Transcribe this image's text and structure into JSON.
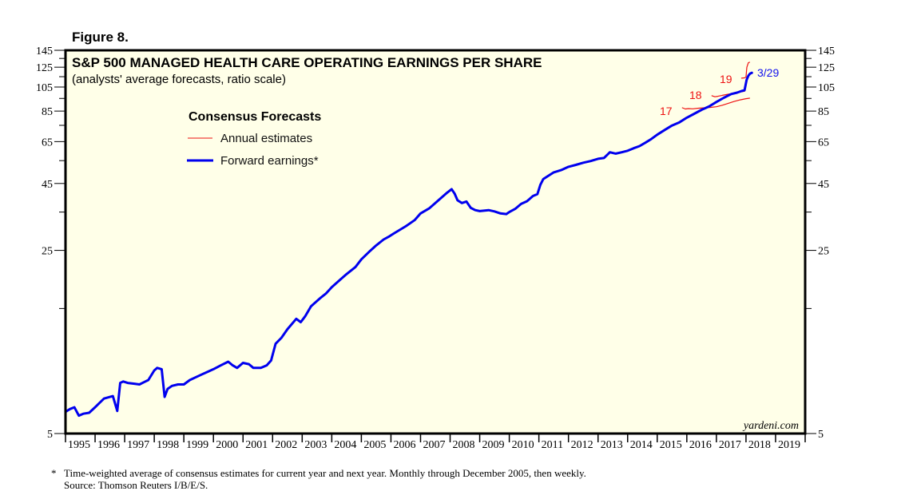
{
  "figure_label": "Figure 8.",
  "footnote": {
    "marker": "*",
    "line1": "Time-weighted average of consensus estimates for current year and next year. Monthly through December 2005, then weekly.",
    "line2": "Source: Thomson Reuters I/B/E/S."
  },
  "colors": {
    "plot_background": "#ffffe8",
    "forward_earnings": "#0000ee",
    "annual_estimates": "#ee1111",
    "axis": "#000000"
  },
  "chart_data": {
    "type": "line",
    "title": "S&P 500 MANAGED HEALTH CARE OPERATING EARNINGS PER SHARE",
    "subtitle": "(analysts' average forecasts, ratio scale)",
    "xlabel": "",
    "ylabel": "",
    "y_scale": "log",
    "ylim": [
      5,
      145
    ],
    "xlim": [
      1995,
      2020
    ],
    "grid": false,
    "y_ticks": [
      5,
      25,
      45,
      65,
      85,
      105,
      125,
      145
    ],
    "y_minor_ticks": [
      15,
      35,
      55,
      75,
      95,
      115,
      135
    ],
    "x_tick_labels": [
      "1995",
      "1996",
      "1997",
      "1998",
      "1999",
      "2000",
      "2001",
      "2002",
      "2003",
      "2004",
      "2005",
      "2006",
      "2007",
      "2008",
      "2009",
      "2010",
      "2011",
      "2012",
      "2013",
      "2014",
      "2015",
      "2016",
      "2017",
      "2018",
      "2019"
    ],
    "legend": {
      "title": "Consensus Forecasts",
      "placement": "top-left",
      "entries": [
        {
          "label": "Annual estimates",
          "series": "annual"
        },
        {
          "label": "Forward earnings*",
          "series": "forward"
        }
      ]
    },
    "watermark": "yardeni.com",
    "series": [
      {
        "name": "Forward earnings",
        "color": "#0000ee",
        "x": [
          1995.0,
          1995.15,
          1995.3,
          1995.45,
          1995.6,
          1995.8,
          1996.0,
          1996.3,
          1996.6,
          1996.75,
          1996.85,
          1996.95,
          1997.1,
          1997.3,
          1997.5,
          1997.65,
          1997.8,
          1998.0,
          1998.1,
          1998.25,
          1998.35,
          1998.45,
          1998.6,
          1998.8,
          1999.0,
          1999.2,
          1999.5,
          1999.8,
          2000.0,
          2000.25,
          2000.5,
          2000.65,
          2000.8,
          2001.0,
          2001.2,
          2001.35,
          2001.6,
          2001.8,
          2001.95,
          2002.1,
          2002.3,
          2002.5,
          2002.8,
          2002.95,
          2003.1,
          2003.3,
          2003.6,
          2003.8,
          2004.0,
          2004.3,
          2004.5,
          2004.8,
          2005.0,
          2005.3,
          2005.5,
          2005.75,
          2005.95,
          2006.1,
          2006.5,
          2006.8,
          2007.0,
          2007.3,
          2007.5,
          2007.7,
          2007.9,
          2008.05,
          2008.15,
          2008.25,
          2008.4,
          2008.55,
          2008.7,
          2008.85,
          2009.0,
          2009.3,
          2009.5,
          2009.7,
          2009.9,
          2010.0,
          2010.2,
          2010.4,
          2010.6,
          2010.8,
          2010.95,
          2011.05,
          2011.15,
          2011.3,
          2011.5,
          2011.75,
          2012.0,
          2012.25,
          2012.5,
          2012.75,
          2013.0,
          2013.2,
          2013.4,
          2013.6,
          2013.8,
          2014.0,
          2014.2,
          2014.4,
          2014.6,
          2014.8,
          2015.0,
          2015.25,
          2015.5,
          2015.75,
          2016.0,
          2016.25,
          2016.5,
          2016.75,
          2017.0,
          2017.25,
          2017.5,
          2017.7,
          2017.85,
          2017.95,
          2018.02,
          2018.08,
          2018.14,
          2018.2
        ],
        "values": [
          6.05,
          6.2,
          6.3,
          5.85,
          5.95,
          6.0,
          6.3,
          6.8,
          6.95,
          6.1,
          7.8,
          7.9,
          7.8,
          7.75,
          7.7,
          7.85,
          8.0,
          8.7,
          8.9,
          8.8,
          6.9,
          7.4,
          7.6,
          7.7,
          7.7,
          8.0,
          8.3,
          8.6,
          8.8,
          9.1,
          9.4,
          9.1,
          8.9,
          9.3,
          9.2,
          8.9,
          8.9,
          9.1,
          9.5,
          11.0,
          11.6,
          12.5,
          13.7,
          13.3,
          14.0,
          15.3,
          16.4,
          17.1,
          18.1,
          19.4,
          20.3,
          21.6,
          23.1,
          24.9,
          26.1,
          27.5,
          28.3,
          29.0,
          30.9,
          32.6,
          34.6,
          36.2,
          37.9,
          39.7,
          41.5,
          42.8,
          41.2,
          38.8,
          37.9,
          38.4,
          36.3,
          35.6,
          35.3,
          35.6,
          35.2,
          34.6,
          34.4,
          35.0,
          36.0,
          37.6,
          38.5,
          40.3,
          41.0,
          44.5,
          46.8,
          48.0,
          49.6,
          50.6,
          52.1,
          53.0,
          54.0,
          54.8,
          55.9,
          56.3,
          59.2,
          58.5,
          59.2,
          60.0,
          61.3,
          62.5,
          64.4,
          66.5,
          69.1,
          72.0,
          74.9,
          77.0,
          80.2,
          83.0,
          86.0,
          88.5,
          92.1,
          95.5,
          98.7,
          100.0,
          101.4,
          102.0,
          111.8,
          116.0,
          118.2,
          119.0
        ]
      },
      {
        "name": "Annual estimate 2017",
        "label": "17",
        "color": "#ee1111",
        "x": [
          2015.85,
          2015.95,
          2016.05,
          2016.2,
          2016.4,
          2016.6,
          2016.8,
          2017.0,
          2017.2,
          2017.4,
          2017.6,
          2017.8,
          2018.0,
          2018.12
        ],
        "values": [
          87.5,
          86.6,
          86.9,
          86.7,
          87.2,
          87.5,
          87.8,
          88.3,
          89.5,
          91.0,
          92.5,
          93.8,
          94.8,
          95.2
        ]
      },
      {
        "name": "Annual estimate 2018",
        "label": "18",
        "color": "#ee1111",
        "x": [
          2016.85,
          2016.95,
          2017.05,
          2017.2,
          2017.4,
          2017.6,
          2017.8,
          2017.95
        ],
        "values": [
          97.3,
          96.4,
          96.8,
          97.6,
          98.6,
          99.5,
          100.5,
          101.2
        ]
      },
      {
        "name": "Annual estimate 2019",
        "label": "19",
        "color": "#ee1111",
        "x": [
          2017.85,
          2017.95,
          2018.0,
          2018.03,
          2018.08,
          2018.12
        ],
        "values": [
          113.5,
          113.8,
          114.5,
          125.0,
          130.0,
          130.5
        ]
      }
    ],
    "annotations": [
      {
        "text": "3/29",
        "color": "#1111ee",
        "target": "Forward earnings end"
      },
      {
        "text": "17",
        "color": "#ee1111"
      },
      {
        "text": "18",
        "color": "#ee1111"
      },
      {
        "text": "19",
        "color": "#ee1111"
      }
    ]
  }
}
